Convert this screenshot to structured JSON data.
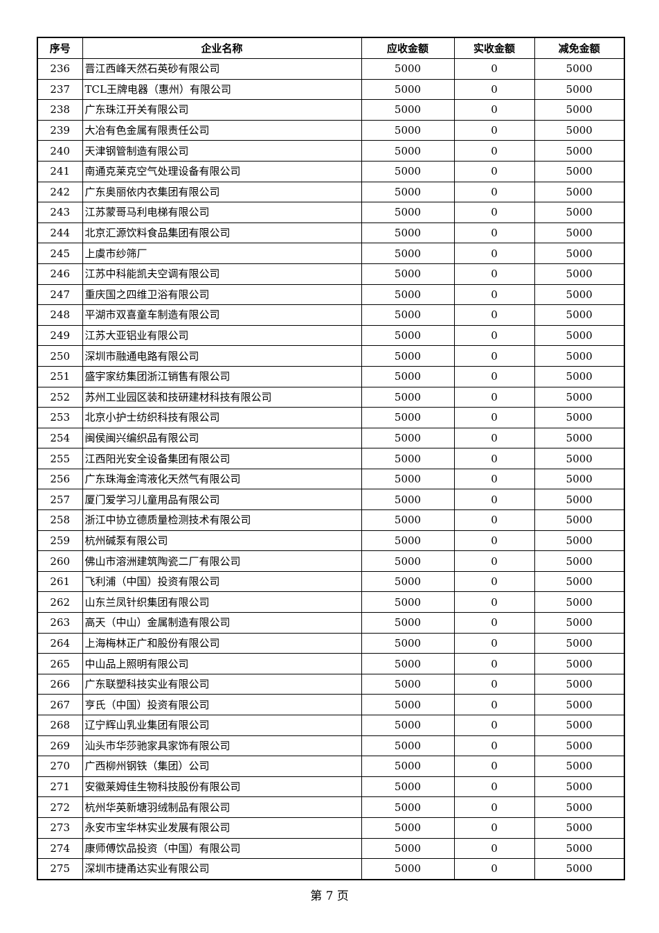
{
  "table": {
    "headers": [
      "序号",
      "企业名称",
      "应收金额",
      "实收金额",
      "减免金额"
    ],
    "rows": [
      [
        "236",
        "晋江西峰天然石英砂有限公司",
        "5000",
        "0",
        "5000"
      ],
      [
        "237",
        "TCL王牌电器（惠州）有限公司",
        "5000",
        "0",
        "5000"
      ],
      [
        "238",
        "广东珠江开关有限公司",
        "5000",
        "0",
        "5000"
      ],
      [
        "239",
        "大冶有色金属有限责任公司",
        "5000",
        "0",
        "5000"
      ],
      [
        "240",
        "天津钢管制造有限公司",
        "5000",
        "0",
        "5000"
      ],
      [
        "241",
        "南通克莱克空气处理设备有限公司",
        "5000",
        "0",
        "5000"
      ],
      [
        "242",
        "广东奥丽依内衣集团有限公司",
        "5000",
        "0",
        "5000"
      ],
      [
        "243",
        "江苏蒙哥马利电梯有限公司",
        "5000",
        "0",
        "5000"
      ],
      [
        "244",
        "北京汇源饮料食品集团有限公司",
        "5000",
        "0",
        "5000"
      ],
      [
        "245",
        "上虞市纱筛厂",
        "5000",
        "0",
        "5000"
      ],
      [
        "246",
        "江苏中科能凯夫空调有限公司",
        "5000",
        "0",
        "5000"
      ],
      [
        "247",
        "重庆国之四维卫浴有限公司",
        "5000",
        "0",
        "5000"
      ],
      [
        "248",
        "平湖市双喜童车制造有限公司",
        "5000",
        "0",
        "5000"
      ],
      [
        "249",
        "江苏大亚铝业有限公司",
        "5000",
        "0",
        "5000"
      ],
      [
        "250",
        "深圳市融通电路有限公司",
        "5000",
        "0",
        "5000"
      ],
      [
        "251",
        "盛宇家纺集团浙江销售有限公司",
        "5000",
        "0",
        "5000"
      ],
      [
        "252",
        "苏州工业园区装和技研建材科技有限公司",
        "5000",
        "0",
        "5000"
      ],
      [
        "253",
        "北京小护士纺织科技有限公司",
        "5000",
        "0",
        "5000"
      ],
      [
        "254",
        "闽侯闽兴编织品有限公司",
        "5000",
        "0",
        "5000"
      ],
      [
        "255",
        "江西阳光安全设备集团有限公司",
        "5000",
        "0",
        "5000"
      ],
      [
        "256",
        "广东珠海金湾液化天然气有限公司",
        "5000",
        "0",
        "5000"
      ],
      [
        "257",
        "厦门爱学习儿童用品有限公司",
        "5000",
        "0",
        "5000"
      ],
      [
        "258",
        "浙江中协立德质量检测技术有限公司",
        "5000",
        "0",
        "5000"
      ],
      [
        "259",
        "杭州碱泵有限公司",
        "5000",
        "0",
        "5000"
      ],
      [
        "260",
        "佛山市溶洲建筑陶瓷二厂有限公司",
        "5000",
        "0",
        "5000"
      ],
      [
        "261",
        "飞利浦（中国）投资有限公司",
        "5000",
        "0",
        "5000"
      ],
      [
        "262",
        "山东兰凤针织集团有限公司",
        "5000",
        "0",
        "5000"
      ],
      [
        "263",
        "高天（中山）金属制造有限公司",
        "5000",
        "0",
        "5000"
      ],
      [
        "264",
        "上海梅林正广和股份有限公司",
        "5000",
        "0",
        "5000"
      ],
      [
        "265",
        "中山品上照明有限公司",
        "5000",
        "0",
        "5000"
      ],
      [
        "266",
        "广东联塑科技实业有限公司",
        "5000",
        "0",
        "5000"
      ],
      [
        "267",
        "亨氏（中国）投资有限公司",
        "5000",
        "0",
        "5000"
      ],
      [
        "268",
        "辽宁辉山乳业集团有限公司",
        "5000",
        "0",
        "5000"
      ],
      [
        "269",
        "汕头市华莎驰家具家饰有限公司",
        "5000",
        "0",
        "5000"
      ],
      [
        "270",
        "广西柳州钢铁（集团）公司",
        "5000",
        "0",
        "5000"
      ],
      [
        "271",
        "安徽莱姆佳生物科技股份有限公司",
        "5000",
        "0",
        "5000"
      ],
      [
        "272",
        "杭州华英新塘羽绒制品有限公司",
        "5000",
        "0",
        "5000"
      ],
      [
        "273",
        "永安市宝华林实业发展有限公司",
        "5000",
        "0",
        "5000"
      ],
      [
        "274",
        "康师傅饮品投资（中国）有限公司",
        "5000",
        "0",
        "5000"
      ],
      [
        "275",
        "深圳市捷甬达实业有限公司",
        "5000",
        "0",
        "5000"
      ]
    ]
  },
  "footer": {
    "page_label": "第 7 页"
  }
}
